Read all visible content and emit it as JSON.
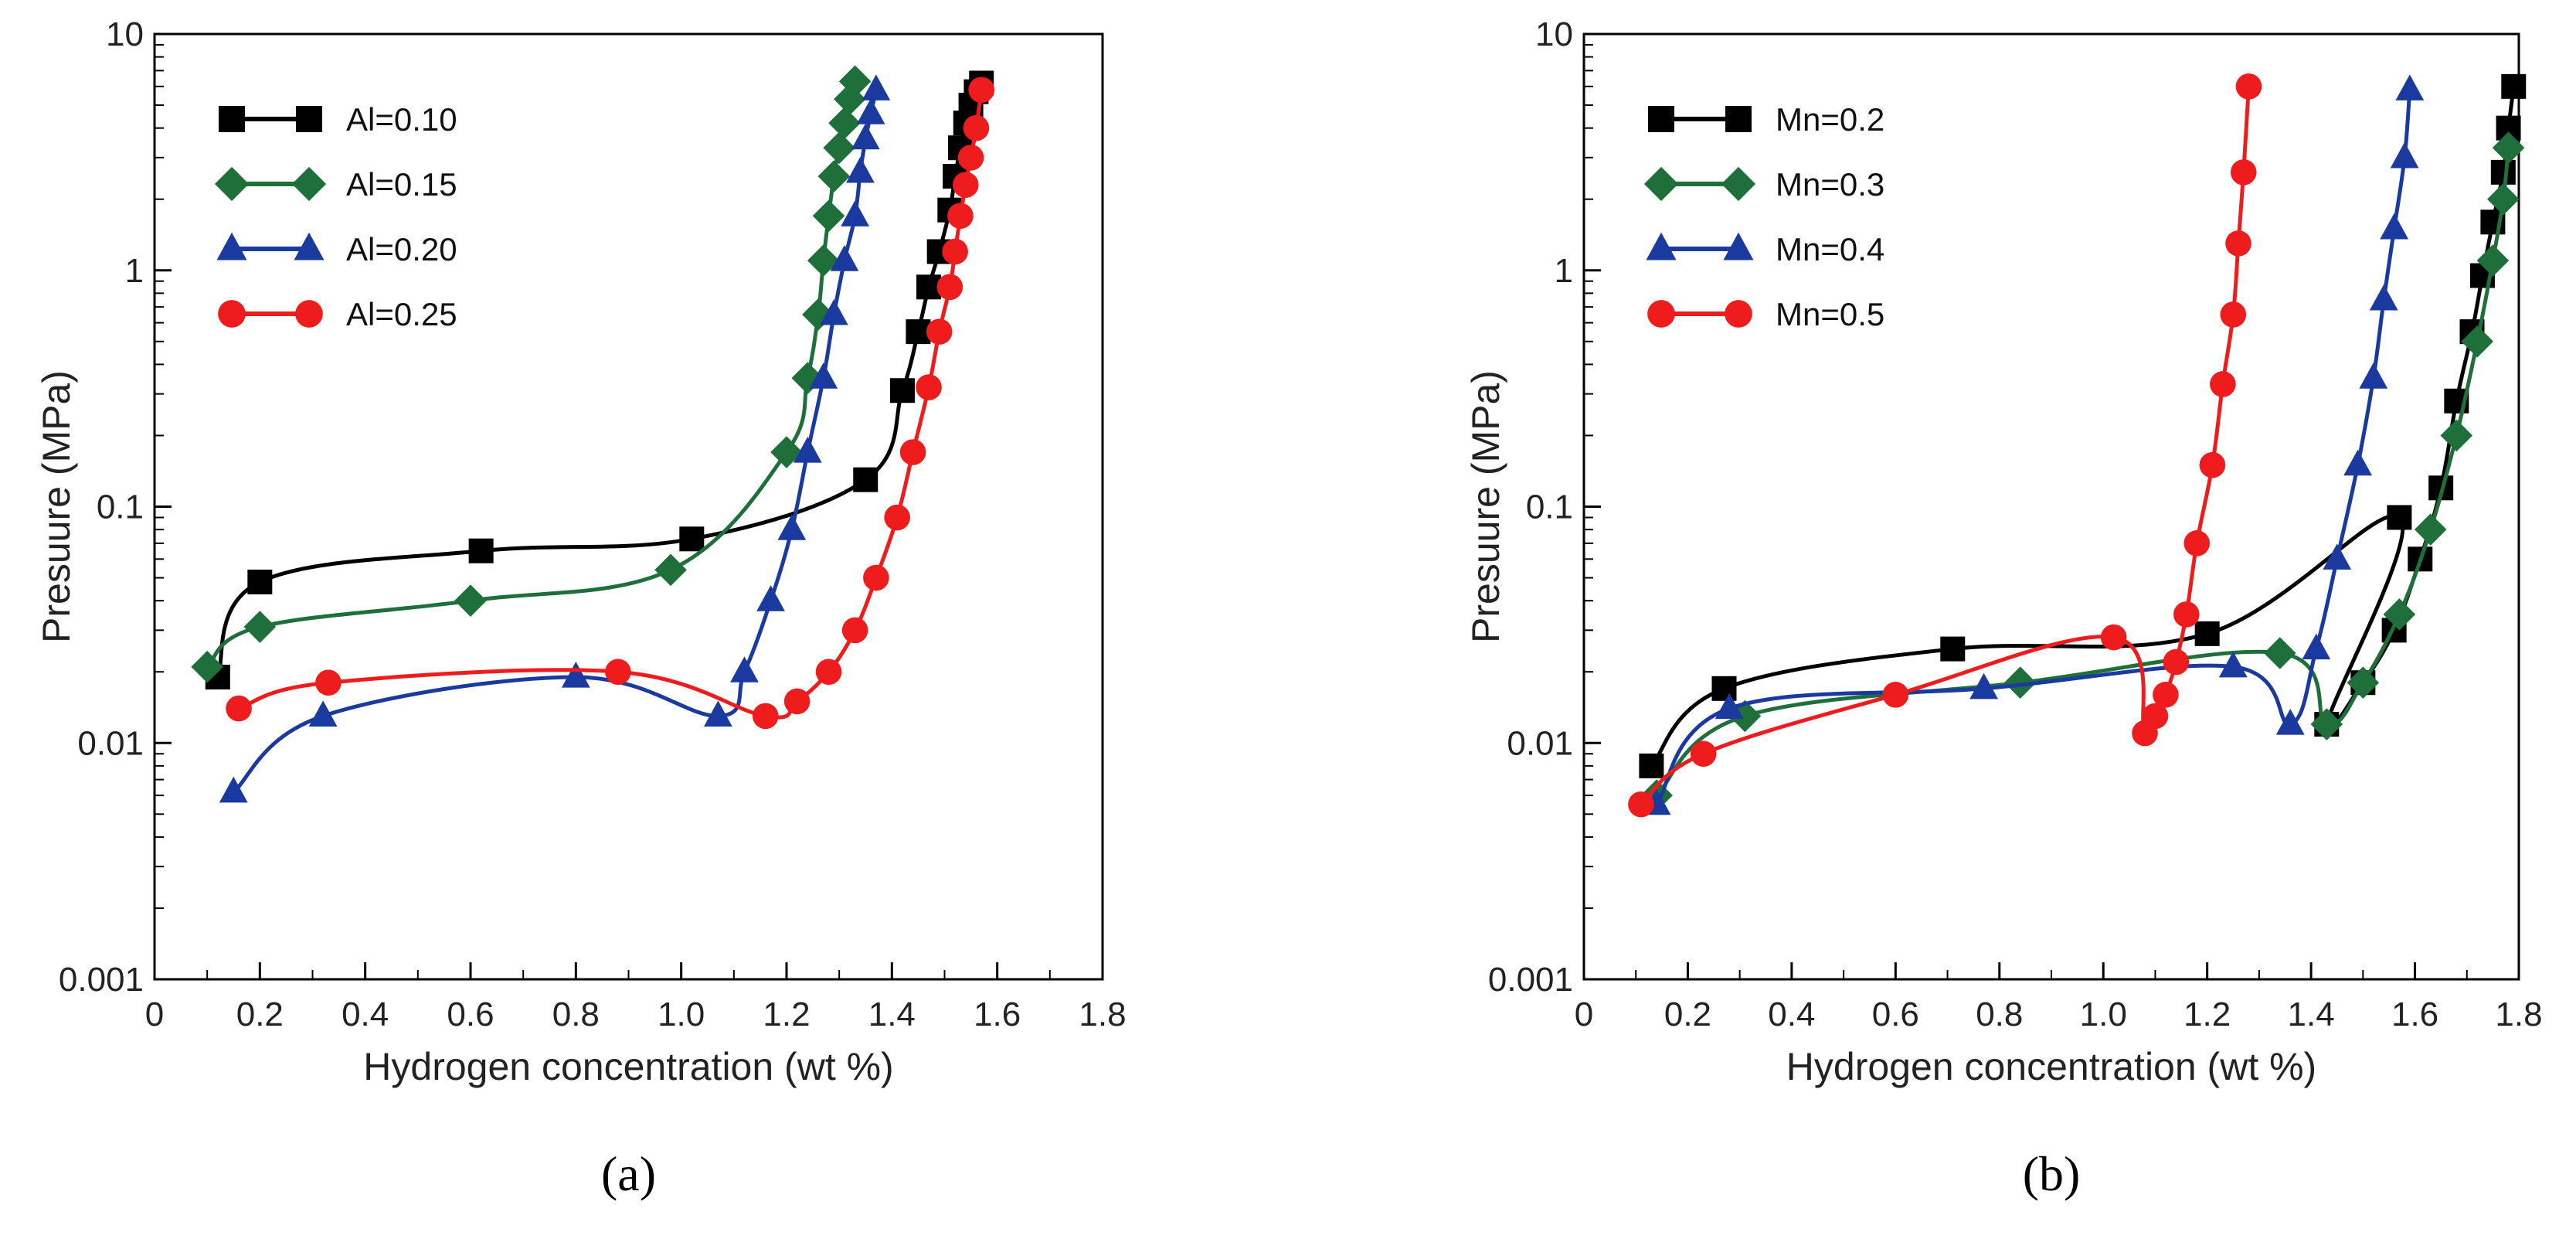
{
  "chart_data": [
    {
      "type": "line",
      "panel_label": "(a)",
      "xlabel": "Hydrogen concentration (wt %)",
      "ylabel": "Presuure (MPa)",
      "xlim": [
        0,
        1.8
      ],
      "ylim": [
        0.001,
        10
      ],
      "yscale": "log",
      "xticks": [
        "0",
        "0.2",
        "0.4",
        "0.6",
        "0.8",
        "1.0",
        "1.2",
        "1.4",
        "1.6",
        "1.8"
      ],
      "yticks": [
        "0.001",
        "0.01",
        "0.1",
        "1",
        "10"
      ],
      "grid": false,
      "legend_position": "top-left",
      "series": [
        {
          "name": "Al=0.10",
          "color": "#000000",
          "marker": "square",
          "x": [
            0.12,
            0.2,
            0.62,
            1.02,
            1.35,
            1.42,
            1.45,
            1.47,
            1.49,
            1.51,
            1.52,
            1.53,
            1.54,
            1.55,
            1.56,
            1.57
          ],
          "y": [
            0.019,
            0.048,
            0.065,
            0.073,
            0.13,
            0.31,
            0.55,
            0.85,
            1.2,
            1.8,
            2.5,
            3.3,
            4.2,
            5.0,
            5.7,
            6.2
          ]
        },
        {
          "name": "Al=0.15",
          "color": "#1f6f3a",
          "marker": "diamond",
          "x": [
            0.1,
            0.2,
            0.6,
            0.98,
            1.2,
            1.24,
            1.26,
            1.27,
            1.28,
            1.29,
            1.3,
            1.31,
            1.32,
            1.33
          ],
          "y": [
            0.021,
            0.031,
            0.04,
            0.054,
            0.17,
            0.35,
            0.65,
            1.1,
            1.7,
            2.5,
            3.3,
            4.2,
            5.3,
            6.3
          ]
        },
        {
          "name": "Al=0.20",
          "color": "#1a3aa0",
          "marker": "triangle",
          "x": [
            0.15,
            0.32,
            0.8,
            1.07,
            1.12,
            1.17,
            1.21,
            1.24,
            1.27,
            1.29,
            1.31,
            1.33,
            1.34,
            1.35,
            1.36,
            1.37
          ],
          "y": [
            0.0062,
            0.013,
            0.019,
            0.013,
            0.02,
            0.04,
            0.08,
            0.17,
            0.35,
            0.65,
            1.1,
            1.7,
            2.6,
            3.6,
            4.6,
            5.8
          ]
        },
        {
          "name": "Al=0.25",
          "color": "#ee1c1c",
          "marker": "circle",
          "x": [
            0.16,
            0.33,
            0.88,
            1.16,
            1.22,
            1.28,
            1.33,
            1.37,
            1.41,
            1.44,
            1.47,
            1.49,
            1.51,
            1.52,
            1.53,
            1.54,
            1.55,
            1.56,
            1.57
          ],
          "y": [
            0.014,
            0.018,
            0.02,
            0.013,
            0.015,
            0.02,
            0.03,
            0.05,
            0.09,
            0.17,
            0.32,
            0.55,
            0.85,
            1.2,
            1.7,
            2.3,
            3.0,
            4.0,
            5.8
          ]
        }
      ]
    },
    {
      "type": "line",
      "panel_label": "(b)",
      "xlabel": "Hydrogen concentration (wt %)",
      "ylabel": "Presuure (MPa)",
      "xlim": [
        0,
        1.8
      ],
      "ylim": [
        0.001,
        10
      ],
      "yscale": "log",
      "xticks": [
        "0",
        "0.2",
        "0.4",
        "0.6",
        "0.8",
        "1.0",
        "1.2",
        "1.4",
        "1.6",
        "1.8"
      ],
      "yticks": [
        "0.001",
        "0.01",
        "0.1",
        "1",
        "10"
      ],
      "grid": false,
      "legend_position": "top-left",
      "series": [
        {
          "name": "Mn=0.2",
          "color": "#000000",
          "marker": "square",
          "x": [
            0.13,
            0.27,
            0.71,
            1.2,
            1.57,
            1.43,
            1.5,
            1.56,
            1.61,
            1.65,
            1.68,
            1.71,
            1.73,
            1.75,
            1.77,
            1.78,
            1.79
          ],
          "y": [
            0.008,
            0.017,
            0.025,
            0.029,
            0.09,
            0.012,
            0.018,
            0.03,
            0.06,
            0.12,
            0.28,
            0.55,
            0.95,
            1.6,
            2.6,
            4.0,
            6.0
          ]
        },
        {
          "name": "Mn=0.3",
          "color": "#1f6f3a",
          "marker": "diamond",
          "x": [
            0.14,
            0.31,
            0.84,
            1.34,
            1.43,
            1.5,
            1.57,
            1.63,
            1.68,
            1.72,
            1.75,
            1.77,
            1.78
          ],
          "y": [
            0.006,
            0.013,
            0.018,
            0.024,
            0.012,
            0.018,
            0.035,
            0.08,
            0.2,
            0.5,
            1.1,
            2.0,
            3.3
          ]
        },
        {
          "name": "Mn=0.4",
          "color": "#1a3aa0",
          "marker": "triangle",
          "x": [
            0.14,
            0.28,
            0.77,
            1.25,
            1.36,
            1.41,
            1.45,
            1.49,
            1.52,
            1.54,
            1.56,
            1.58,
            1.59
          ],
          "y": [
            0.0055,
            0.014,
            0.017,
            0.021,
            0.012,
            0.025,
            0.06,
            0.15,
            0.35,
            0.75,
            1.5,
            3.0,
            5.8
          ]
        },
        {
          "name": "Mn=0.5",
          "color": "#ee1c1c",
          "marker": "circle",
          "x": [
            0.11,
            0.23,
            0.6,
            1.02,
            1.08,
            1.1,
            1.12,
            1.14,
            1.16,
            1.18,
            1.21,
            1.23,
            1.25,
            1.26,
            1.27,
            1.28
          ],
          "y": [
            0.0055,
            0.009,
            0.016,
            0.028,
            0.011,
            0.013,
            0.016,
            0.022,
            0.035,
            0.07,
            0.15,
            0.33,
            0.65,
            1.3,
            2.6,
            6.0
          ]
        }
      ]
    }
  ]
}
